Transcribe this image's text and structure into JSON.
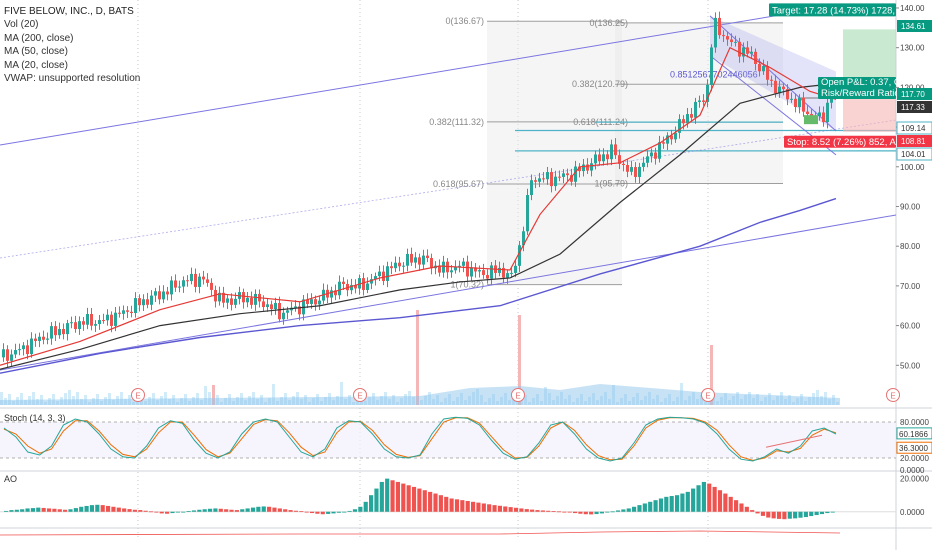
{
  "legend": {
    "title": "FIVE BELOW, INC., D, BATS",
    "vol": "Vol (20)",
    "ma200": "MA (200, close)",
    "ma50": "MA (50, close)",
    "ma20": "MA (20, close)",
    "vwap": "VWAP: unsupported resolution"
  },
  "panes": {
    "stoch_label": "Stoch (14, 3, 3)",
    "ao_label": "AO"
  },
  "colors": {
    "up": "#26a69a",
    "down": "#ef5350",
    "ma20": "#e53935",
    "ma50": "#333333",
    "ma200": "#5b57d1",
    "channel": "#7b75e0",
    "target": "#089981",
    "stop": "#f23645"
  },
  "chart_data": [
    {
      "type": "candlestick",
      "y_ticks": [
        "140.00",
        "130.00",
        "120.00",
        "110.00",
        "100.00",
        "90.00",
        "80.00",
        "70.00",
        "60.00",
        "50.00"
      ],
      "ylim": [
        40,
        141
      ],
      "key_series": {
        "close_path": [
          [
            0,
            52
          ],
          [
            20,
            54
          ],
          [
            40,
            57
          ],
          [
            60,
            59
          ],
          [
            80,
            61
          ],
          [
            100,
            61
          ],
          [
            120,
            63
          ],
          [
            140,
            66
          ],
          [
            160,
            68
          ],
          [
            180,
            71
          ],
          [
            200,
            72
          ],
          [
            220,
            66
          ],
          [
            240,
            67
          ],
          [
            260,
            66
          ],
          [
            280,
            63
          ],
          [
            300,
            65
          ],
          [
            320,
            67
          ],
          [
            340,
            70
          ],
          [
            360,
            70
          ],
          [
            380,
            73
          ],
          [
            400,
            76
          ],
          [
            420,
            77
          ],
          [
            440,
            74
          ],
          [
            460,
            75
          ],
          [
            480,
            73
          ],
          [
            500,
            74
          ],
          [
            510,
            72
          ],
          [
            520,
            82
          ],
          [
            530,
            97
          ],
          [
            550,
            97
          ],
          [
            570,
            98
          ],
          [
            590,
            101
          ],
          [
            610,
            104
          ],
          [
            630,
            98
          ],
          [
            650,
            103
          ],
          [
            670,
            108
          ],
          [
            690,
            114
          ],
          [
            705,
            118
          ],
          [
            712,
            136
          ],
          [
            730,
            131
          ],
          [
            750,
            128
          ],
          [
            770,
            121
          ],
          [
            790,
            117
          ],
          [
            810,
            113
          ],
          [
            820,
            112
          ],
          [
            830,
            118
          ]
        ],
        "ma200": [
          [
            0,
            48
          ],
          [
            100,
            53
          ],
          [
            200,
            57
          ],
          [
            300,
            60
          ],
          [
            400,
            62
          ],
          [
            500,
            65
          ],
          [
            600,
            73
          ],
          [
            700,
            80
          ],
          [
            760,
            86
          ],
          [
            800,
            89
          ],
          [
            836,
            92
          ]
        ],
        "ma50": [
          [
            0,
            49
          ],
          [
            80,
            54
          ],
          [
            160,
            60
          ],
          [
            240,
            63
          ],
          [
            320,
            65
          ],
          [
            400,
            69
          ],
          [
            460,
            71
          ],
          [
            510,
            72
          ],
          [
            560,
            78
          ],
          [
            620,
            91
          ],
          [
            680,
            103
          ],
          [
            740,
            116
          ],
          [
            800,
            120
          ],
          [
            836,
            121
          ]
        ],
        "ma20": [
          [
            0,
            50
          ],
          [
            80,
            56
          ],
          [
            160,
            64
          ],
          [
            220,
            68
          ],
          [
            300,
            66
          ],
          [
            380,
            72
          ],
          [
            440,
            75
          ],
          [
            510,
            74
          ],
          [
            540,
            88
          ],
          [
            580,
            100
          ],
          [
            620,
            101
          ],
          [
            660,
            106
          ],
          [
            700,
            113
          ],
          [
            730,
            130
          ],
          [
            770,
            125
          ],
          [
            810,
            119
          ],
          [
            836,
            117
          ]
        ]
      },
      "fib_left": {
        "labels": [
          "0(136.67)",
          "0.382(111.32)",
          "0.618(95.67)",
          "1(70.32)"
        ],
        "values": [
          136.67,
          111.32,
          95.67,
          70.32
        ]
      },
      "fib_right": {
        "labels": [
          "0(136.25)",
          "0.382(120.79)",
          "0.618(111.24)",
          "1(95.79)"
        ],
        "values": [
          136.25,
          120.79,
          111.24,
          95.79
        ]
      },
      "fib_note": "0.8512567702446056",
      "levels": [
        109.14,
        104.01
      ],
      "position": {
        "entry": 117.33,
        "target": 134.61,
        "stop": 108.81,
        "current": 117.7,
        "target_text": "Target: 17.28 (14.73%) 1728,",
        "stop_text": "Stop: 8.52 (7.26%) 852, A",
        "pnl_text": "Open P&L: 0.37, Q",
        "rr_text": "Risk/Reward Ratio"
      },
      "price_badges": [
        "134.61",
        "117.70",
        "117.33",
        "109.14",
        "108.81",
        "104.01"
      ],
      "earnings_marker": "E"
    },
    {
      "type": "line",
      "name": "Stoch (14, 3, 3)",
      "y_ticks": [
        "80.0000",
        "20.0000",
        "0.0000"
      ],
      "ylim": [
        0,
        100
      ],
      "values_badges": [
        "60.1866",
        "36.3000"
      ],
      "k": [
        70,
        55,
        30,
        25,
        40,
        75,
        85,
        80,
        60,
        35,
        22,
        20,
        40,
        70,
        82,
        78,
        50,
        28,
        20,
        30,
        60,
        80,
        85,
        80,
        55,
        30,
        22,
        35,
        70,
        82,
        80,
        60,
        35,
        22,
        20,
        25,
        60,
        85,
        88,
        86,
        75,
        50,
        28,
        18,
        22,
        45,
        75,
        80,
        60,
        35,
        20,
        15,
        20,
        45,
        75,
        85,
        88,
        87,
        85,
        78,
        60,
        35,
        18,
        15,
        22,
        35,
        28,
        40,
        65,
        70,
        60
      ],
      "d": [
        68,
        60,
        40,
        28,
        35,
        65,
        82,
        82,
        65,
        42,
        26,
        22,
        35,
        62,
        80,
        80,
        58,
        34,
        22,
        28,
        52,
        76,
        84,
        82,
        62,
        38,
        24,
        30,
        62,
        80,
        81,
        66,
        42,
        26,
        21,
        24,
        52,
        80,
        87,
        87,
        78,
        56,
        34,
        20,
        21,
        40,
        70,
        80,
        66,
        42,
        24,
        17,
        18,
        40,
        70,
        83,
        87,
        87,
        86,
        80,
        66,
        42,
        22,
        16,
        20,
        32,
        30,
        36,
        58,
        68,
        62
      ]
    },
    {
      "type": "bar",
      "name": "AO",
      "y_ticks": [
        "20.0000",
        "0.0000"
      ],
      "ylim": [
        -8,
        24
      ],
      "values": [
        0.5,
        1,
        1.2,
        1.5,
        2,
        2.2,
        2.5,
        2.3,
        2,
        1.8,
        1.5,
        1.2,
        1.5,
        2.2,
        3,
        3.5,
        4,
        4.2,
        4,
        3.5,
        3,
        2.5,
        2,
        1.6,
        1.2,
        1,
        0.6,
        0.2,
        -0.5,
        -1,
        -1.2,
        -0.8,
        -0.4,
        0,
        0.4,
        0.8,
        1.2,
        1.5,
        1.8,
        2,
        1.8,
        1.5,
        1.2,
        1,
        1.5,
        2,
        2.5,
        3,
        3.2,
        3,
        2.5,
        2,
        1.5,
        1,
        0.6,
        0.3,
        -0.3,
        -0.8,
        -1.2,
        -1.5,
        -1.3,
        -1,
        -0.6,
        -0.2,
        0.5,
        1.5,
        3,
        6,
        10,
        14,
        18,
        20,
        19,
        18,
        17,
        16,
        15,
        14,
        13,
        12,
        11,
        10,
        9,
        8,
        7.5,
        7,
        6.5,
        6,
        5.5,
        5,
        4.5,
        4,
        3.6,
        3.2,
        2.8,
        2.4,
        2,
        1.6,
        1.3,
        1,
        0.8,
        0.6,
        0.4,
        0.2,
        0,
        -0.4,
        -0.8,
        -1.2,
        -1.5,
        -1.6,
        -1.4,
        -1,
        -0.4,
        0.2,
        0.8,
        1.4,
        2,
        3,
        4,
        5,
        6,
        7,
        8,
        9,
        9.5,
        10,
        11,
        12,
        14,
        16,
        18,
        17,
        15,
        13,
        11,
        9,
        7,
        5,
        3,
        1,
        -1,
        -2.5,
        -3.5,
        -4,
        -4.3,
        -4.5,
        -4.2,
        -4,
        -3.6,
        -3.2,
        -2.6,
        -2,
        -1.4,
        -0.8,
        -0.2
      ]
    }
  ]
}
